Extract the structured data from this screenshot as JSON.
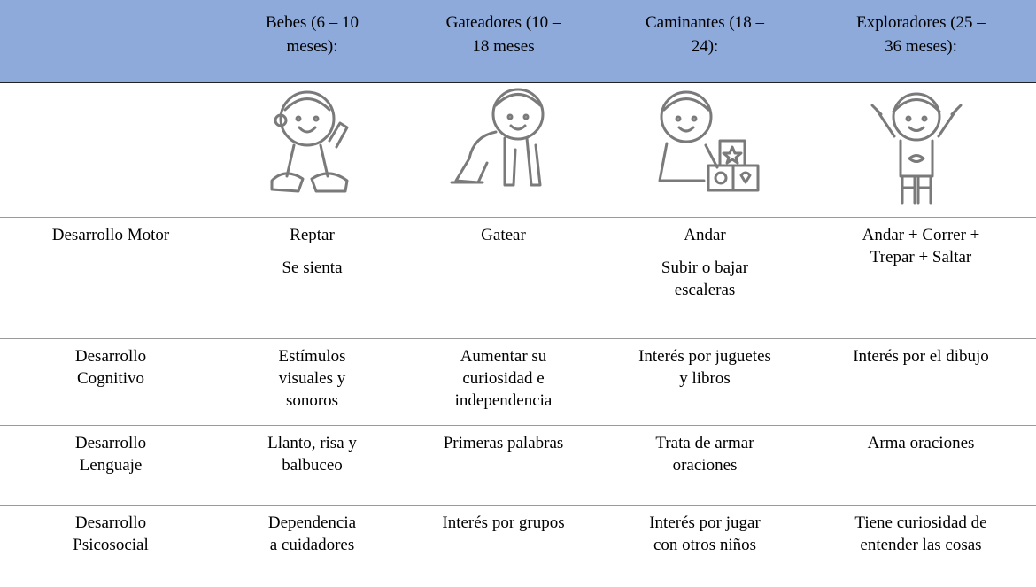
{
  "table": {
    "header": [
      [
        "Bebes (6 – 10",
        "meses):"
      ],
      [
        "Gateadores (10 –",
        "18 meses"
      ],
      [
        "Caminantes (18 –",
        "24):"
      ],
      [
        "Exploradores (25 –",
        "36 meses):"
      ]
    ],
    "rows": [
      {
        "label": [
          "Desarrollo Motor"
        ],
        "cells": [
          [
            [
              "Reptar"
            ],
            [
              "Se sienta"
            ]
          ],
          [
            [
              "Gatear"
            ]
          ],
          [
            [
              "Andar"
            ],
            [
              "Subir o bajar",
              "escaleras"
            ]
          ],
          [
            [
              "Andar + Correr +",
              "Trepar + Saltar"
            ]
          ]
        ]
      },
      {
        "label": [
          "Desarrollo",
          "Cognitivo"
        ],
        "cells": [
          [
            [
              "Estímulos",
              "visuales y",
              "sonoros"
            ]
          ],
          [
            [
              "Aumentar su",
              "curiosidad e",
              "independencia"
            ]
          ],
          [
            [
              "Interés por juguetes",
              "y libros"
            ]
          ],
          [
            [
              "Interés por el dibujo"
            ]
          ]
        ]
      },
      {
        "label": [
          "Desarrollo",
          "Lenguaje"
        ],
        "cells": [
          [
            [
              "Llanto, risa y",
              "balbuceo"
            ]
          ],
          [
            [
              "Primeras palabras"
            ]
          ],
          [
            [
              "Trata de armar",
              "oraciones"
            ]
          ],
          [
            [
              "Arma oraciones"
            ]
          ]
        ]
      },
      {
        "label": [
          "Desarrollo",
          "Psicosocial"
        ],
        "cells": [
          [
            [
              "Dependencia",
              "a cuidadores"
            ]
          ],
          [
            [
              "Interés por grupos"
            ]
          ],
          [
            [
              "Interés por jugar",
              "con otros niños"
            ]
          ],
          [
            [
              "Tiene curiosidad de",
              "entender las cosas"
            ]
          ]
        ]
      }
    ]
  }
}
